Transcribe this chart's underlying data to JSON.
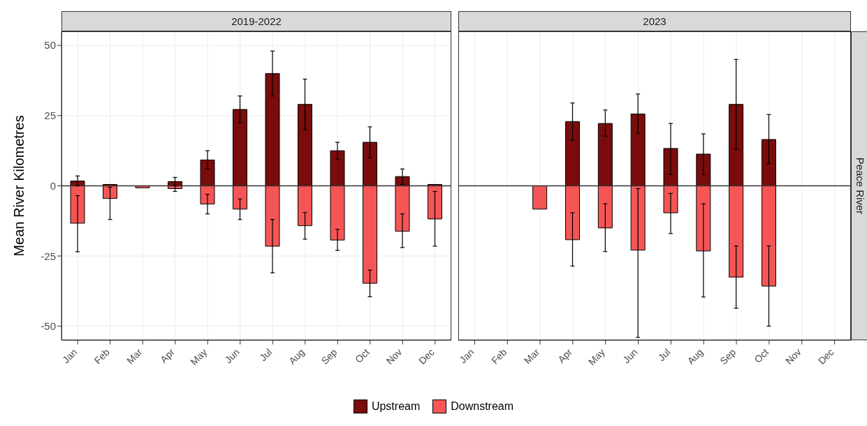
{
  "chart_data": [
    {
      "type": "bar",
      "title": "2019-2022",
      "ylabel": "Mean River Kilometres",
      "categories": [
        "Jan",
        "Feb",
        "Mar",
        "Apr",
        "May",
        "Jun",
        "Jul",
        "Aug",
        "Sep",
        "Oct",
        "Nov",
        "Dec"
      ],
      "stacked": true,
      "ylim": [
        -55,
        55
      ],
      "yticks": [
        -50,
        -25,
        0,
        25,
        50
      ],
      "grid": true,
      "legend": "bottom",
      "ref_lines": [
        {
          "axis": "y",
          "value": 0,
          "color": "#333333"
        }
      ],
      "series": [
        {
          "name": "Upstream",
          "color": "#7a0c0c",
          "values": [
            1.7,
            0.5,
            null,
            1.5,
            9.2,
            27.2,
            40,
            29,
            12.5,
            15.5,
            3.3,
            0.5
          ],
          "errors": [
            [
              0,
              3.5
            ],
            null,
            null,
            [
              0,
              3
            ],
            [
              6,
              12.5
            ],
            [
              22.5,
              32
            ],
            [
              32,
              48
            ],
            [
              20,
              38
            ],
            [
              9.5,
              15.5
            ],
            [
              10,
              21
            ],
            [
              0.5,
              6
            ],
            null
          ]
        },
        {
          "name": "Downstream",
          "color": "#f55555",
          "values": [
            -13.3,
            -4.5,
            -0.7,
            -1,
            -6.5,
            -8.3,
            -21.5,
            -14.2,
            -19.3,
            -34.7,
            -16.2,
            -11.8
          ],
          "errors": [
            [
              -23.5,
              -3.5
            ],
            [
              -12,
              -0.5
            ],
            null,
            [
              -2,
              0
            ],
            [
              -10,
              -3
            ],
            [
              -12,
              -4.7
            ],
            [
              -31,
              -12
            ],
            [
              -19,
              -9.5
            ],
            [
              -23,
              -15.5
            ],
            [
              -39.5,
              -30
            ],
            [
              -22,
              -10
            ],
            [
              -21.5,
              -2
            ]
          ]
        }
      ]
    },
    {
      "type": "bar",
      "title": "2023",
      "annotations": [
        "Peace River"
      ],
      "categories": [
        "Jan",
        "Feb",
        "Mar",
        "Apr",
        "May",
        "Jun",
        "Jul",
        "Aug",
        "Sep",
        "Oct",
        "Nov",
        "Dec"
      ],
      "stacked": true,
      "ylim": [
        -55,
        55
      ],
      "yticks": [
        -50,
        -25,
        0,
        25,
        50
      ],
      "tick_labels": "x",
      "grid": true,
      "ref_lines": [
        {
          "axis": "y",
          "value": 0,
          "color": "#333333"
        }
      ],
      "series": [
        {
          "color": "#7a0c0c",
          "values": [
            null,
            null,
            null,
            22.9,
            22.2,
            25.6,
            13.3,
            11.3,
            29,
            16.5,
            null,
            null
          ],
          "errors": [
            null,
            null,
            null,
            [
              16.3,
              29.5
            ],
            [
              17.7,
              27
            ],
            [
              18.7,
              32.7
            ],
            [
              4,
              22.2
            ],
            [
              4,
              18.5
            ],
            [
              13,
              45
            ],
            [
              7.9,
              25.4
            ],
            null,
            null
          ]
        },
        {
          "color": "#f55555",
          "values": [
            null,
            null,
            -8.3,
            -19.2,
            -15,
            -22.9,
            -9.6,
            -23.2,
            -32.5,
            -35.7,
            null,
            null
          ],
          "errors": [
            null,
            null,
            null,
            [
              -28.6,
              -9.6
            ],
            [
              -23.4,
              -6.4
            ],
            [
              -54,
              -1
            ],
            [
              -17,
              -2.7
            ],
            [
              -39.6,
              -6.4
            ],
            [
              -43.6,
              -21.4
            ],
            [
              -50,
              -21.4
            ],
            null,
            null
          ]
        }
      ]
    }
  ]
}
